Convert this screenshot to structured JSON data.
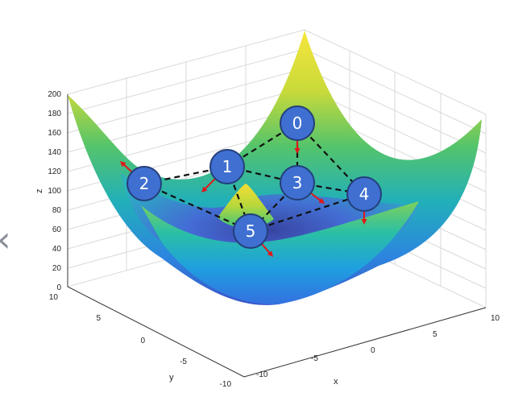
{
  "axes": {
    "z_label": "z",
    "x_label": "x",
    "y_label": "y",
    "z_ticks": [
      "0",
      "20",
      "40",
      "60",
      "80",
      "100",
      "120",
      "140",
      "160",
      "180",
      "200"
    ],
    "y_ticks": [
      "10",
      "5",
      "0",
      "-5",
      "-10"
    ],
    "x_ticks": [
      "-10",
      "-5",
      "0",
      "5",
      "10"
    ]
  },
  "surface": {
    "equation_hint": "paraboloid with central bump",
    "colormap": [
      "#3e2b8e",
      "#3b5fd6",
      "#1ea2d6",
      "#2cc0a0",
      "#8fd04a",
      "#e8d83a",
      "#f7e63c"
    ]
  },
  "nodes": [
    {
      "id": "0",
      "label": "0"
    },
    {
      "id": "1",
      "label": "1"
    },
    {
      "id": "2",
      "label": "2"
    },
    {
      "id": "3",
      "label": "3"
    },
    {
      "id": "4",
      "label": "4"
    },
    {
      "id": "5",
      "label": "5"
    }
  ],
  "edges": [
    [
      "0",
      "1"
    ],
    [
      "0",
      "3"
    ],
    [
      "0",
      "4"
    ],
    [
      "1",
      "2"
    ],
    [
      "1",
      "3"
    ],
    [
      "1",
      "5"
    ],
    [
      "2",
      "5"
    ],
    [
      "3",
      "4"
    ],
    [
      "3",
      "5"
    ],
    [
      "5",
      "4"
    ]
  ],
  "colors": {
    "node_fill": "#3f6fd1",
    "node_stroke": "#233f7a",
    "edge": "#111111",
    "arrow": "#e01818"
  },
  "nav": {
    "chevron": "‹"
  }
}
